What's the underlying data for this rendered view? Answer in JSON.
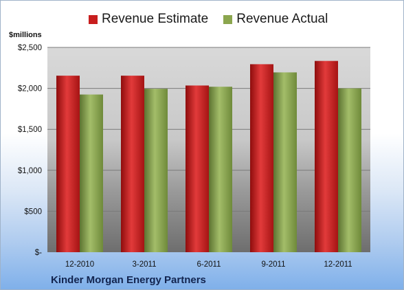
{
  "chart_data": {
    "type": "bar",
    "units_label": "$millions",
    "categories": [
      "12-2010",
      "3-2011",
      "6-2011",
      "9-2011",
      "12-2011"
    ],
    "series": [
      {
        "name": "Revenue Estimate",
        "color": "#d42a2a",
        "values": [
          2155,
          2155,
          2035,
          2295,
          2335
        ]
      },
      {
        "name": "Revenue Actual",
        "color": "#93ad5a",
        "values": [
          1925,
          1995,
          2020,
          2195,
          2000
        ]
      }
    ],
    "yticks": [
      {
        "value": 0,
        "label": "$-"
      },
      {
        "value": 500,
        "label": "$500"
      },
      {
        "value": 1000,
        "label": "$1,000"
      },
      {
        "value": 1500,
        "label": "$1,500"
      },
      {
        "value": 2000,
        "label": "$2,000"
      },
      {
        "value": 2500,
        "label": "$2,500"
      }
    ],
    "ylim": [
      0,
      2500
    ],
    "grid": true,
    "legend_position": "top",
    "footer": "Kinder Morgan Energy Partners"
  }
}
